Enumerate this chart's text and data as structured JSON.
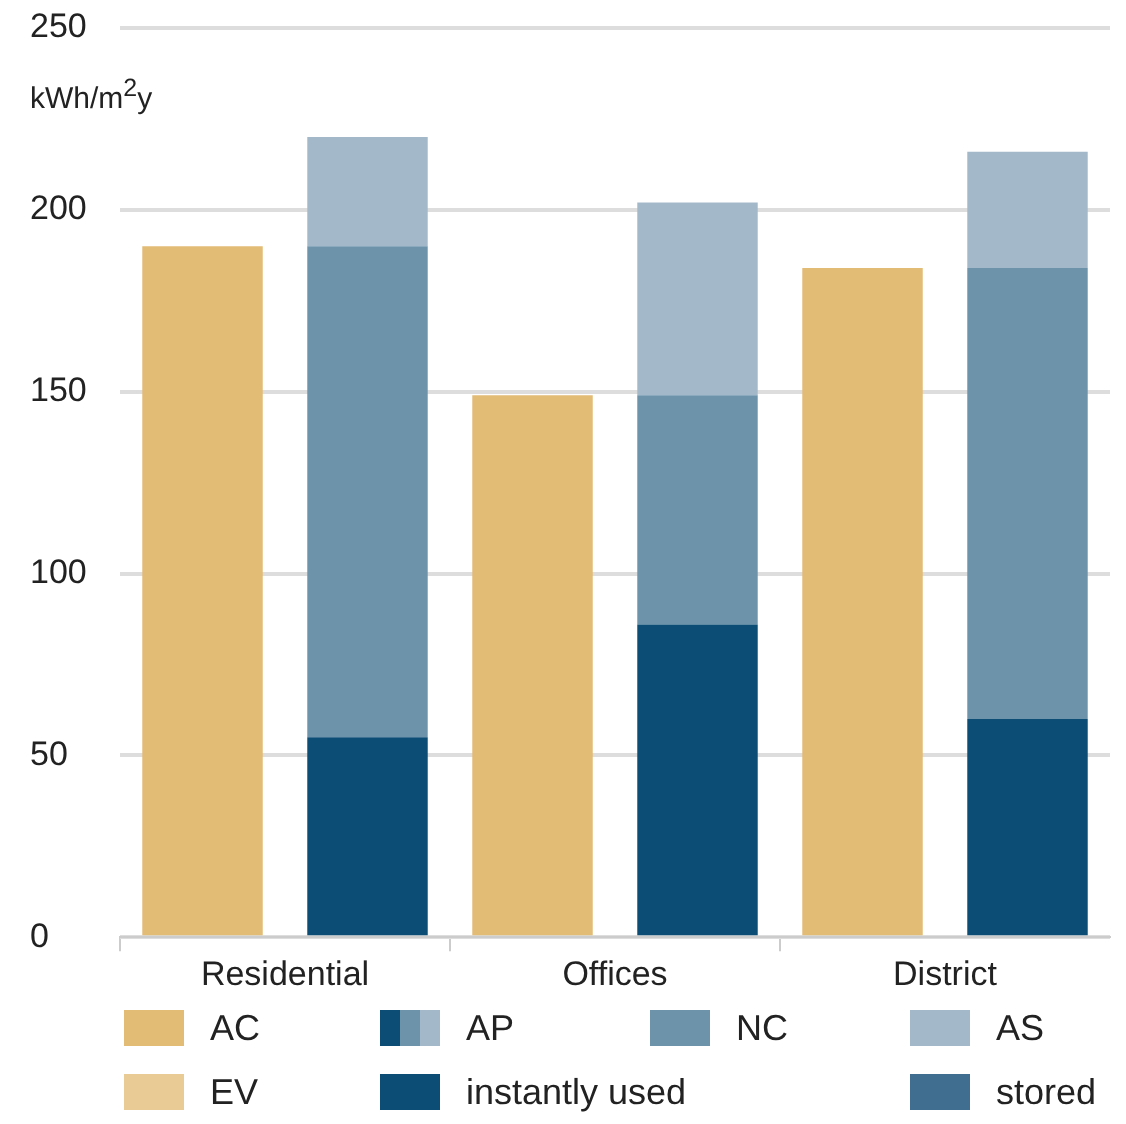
{
  "chart_data": {
    "type": "bar",
    "ylabel": "kWh/m$^{2}$y",
    "categories": [
      "Residential",
      null,
      "Offices",
      null,
      "District",
      null
    ],
    "stacked": true,
    "series": [
      {
        "name": "AC",
        "color": "#e2bb74",
        "values": [
          190,
          null,
          149,
          null,
          184,
          null
        ]
      },
      {
        "name": "instantly used",
        "color": "#0b4d74",
        "values": [
          null,
          55,
          null,
          86,
          null,
          60
        ]
      },
      {
        "name": "NC",
        "color": "#6d93ab",
        "values": [
          null,
          135,
          null,
          63,
          null,
          124
        ]
      },
      {
        "name": "AS",
        "color": "#a3b9ca",
        "values": [
          null,
          30,
          null,
          53,
          null,
          32
        ]
      },
      {
        "name": "EV",
        "color": "#e9cb96",
        "values": [
          null,
          null,
          null,
          null,
          null,
          null
        ]
      },
      {
        "name": "stored",
        "color": "#3f6e90",
        "values": [
          null,
          null,
          null,
          null,
          null,
          null
        ]
      }
    ],
    "annotations": [
      "AP"
    ],
    "ylim": [
      0,
      250
    ],
    "yticks": [
      0,
      50,
      100,
      150,
      200,
      250
    ],
    "grid": "y",
    "legend": "bottom"
  }
}
